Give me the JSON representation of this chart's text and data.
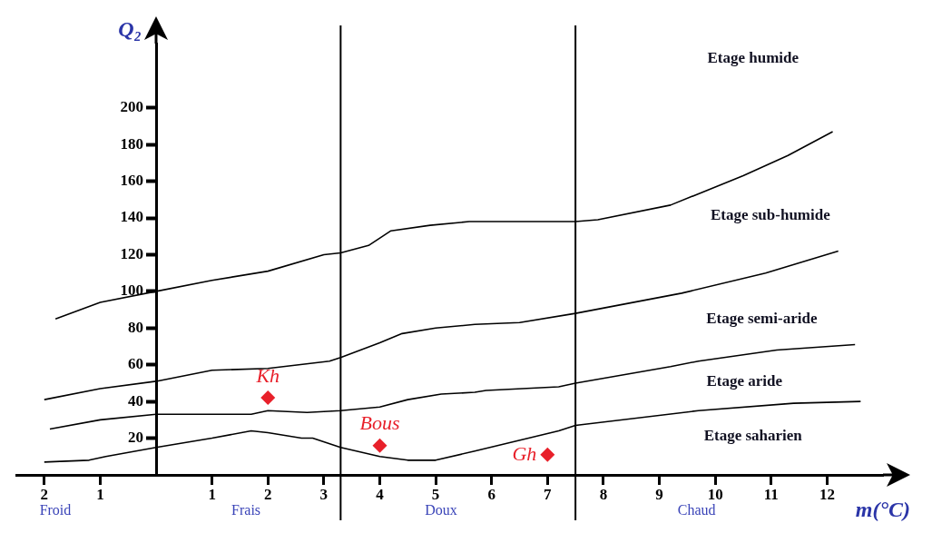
{
  "chart_data": {
    "type": "line",
    "xlabel": "m(°C)",
    "ylabel": "Q₂",
    "xlim": [
      -2.5,
      13
    ],
    "ylim": [
      0,
      235
    ],
    "xticks": [
      {
        "value": -2,
        "label": "2"
      },
      {
        "value": -1,
        "label": "1"
      },
      1,
      2,
      3,
      4,
      5,
      6,
      7,
      8,
      9,
      10,
      11,
      12
    ],
    "yticks": [
      20,
      40,
      60,
      80,
      100,
      120,
      140,
      160,
      180,
      200
    ],
    "grid": false,
    "legend": false,
    "ref_lines": [
      {
        "axis": "x",
        "value": 3.3,
        "color": "#000000"
      },
      {
        "axis": "x",
        "value": 7.5,
        "color": "#000000"
      }
    ],
    "series": [
      {
        "color": "#000000",
        "x": [
          -1.8,
          -1,
          0,
          1,
          2,
          3,
          3.3,
          3.8,
          4.2,
          4.9,
          5.6,
          6.7,
          7.5,
          7.9,
          9.2,
          10.5,
          11.3,
          12.1
        ],
        "values": [
          85,
          94,
          100,
          106,
          111,
          120,
          121,
          125,
          133,
          136,
          138,
          138,
          138,
          139,
          147,
          163,
          174,
          187
        ]
      },
      {
        "color": "#000000",
        "x": [
          -2,
          -1,
          0,
          1,
          2,
          3.1,
          3.3,
          4,
          4.4,
          5,
          5.7,
          6.5,
          7.5,
          9.4,
          10.9,
          12.2
        ],
        "values": [
          41,
          47,
          51,
          57,
          58,
          62,
          64,
          72,
          77,
          80,
          82,
          83,
          88,
          99,
          110,
          122
        ]
      },
      {
        "color": "#000000",
        "x": [
          -1.9,
          -1,
          0,
          1.7,
          2,
          2.7,
          3.3,
          4,
          4.5,
          5.1,
          5.7,
          5.9,
          7.2,
          7.5,
          9.2,
          9.7,
          11.1,
          12.5
        ],
        "values": [
          25,
          30,
          33,
          33,
          35,
          34,
          35,
          37,
          41,
          44,
          45,
          46,
          48,
          50,
          59,
          62,
          68,
          71
        ]
      },
      {
        "color": "#000000",
        "x": [
          -2,
          -1.2,
          -0.9,
          0,
          1,
          1.7,
          2,
          2.6,
          2.8,
          3.3,
          4,
          4.5,
          5,
          5.7,
          7.2,
          7.5,
          9.7,
          11.4,
          12.6
        ],
        "values": [
          7,
          8,
          10,
          15,
          20,
          24,
          23,
          20,
          20,
          15,
          10,
          8,
          8,
          13,
          24,
          27,
          35,
          39,
          40
        ]
      },
      {
        "type": "scatter",
        "name": "Kh",
        "color": "#e8202a",
        "marker": "diamond",
        "x": [
          2
        ],
        "values": [
          42
        ]
      },
      {
        "type": "scatter",
        "name": "Bous",
        "color": "#e8202a",
        "marker": "diamond",
        "x": [
          4
        ],
        "values": [
          16
        ]
      },
      {
        "type": "scatter",
        "name": "Gh",
        "color": "#e8202a",
        "marker": "diamond",
        "x": [
          7
        ],
        "values": [
          11
        ]
      }
    ],
    "annotations": [
      "Etage humide",
      "Etage sub-humide",
      "Etage semi-aride",
      "Etage aride",
      "Etage saharien",
      "Froid",
      "Frais",
      "Doux",
      "Chaud"
    ]
  }
}
